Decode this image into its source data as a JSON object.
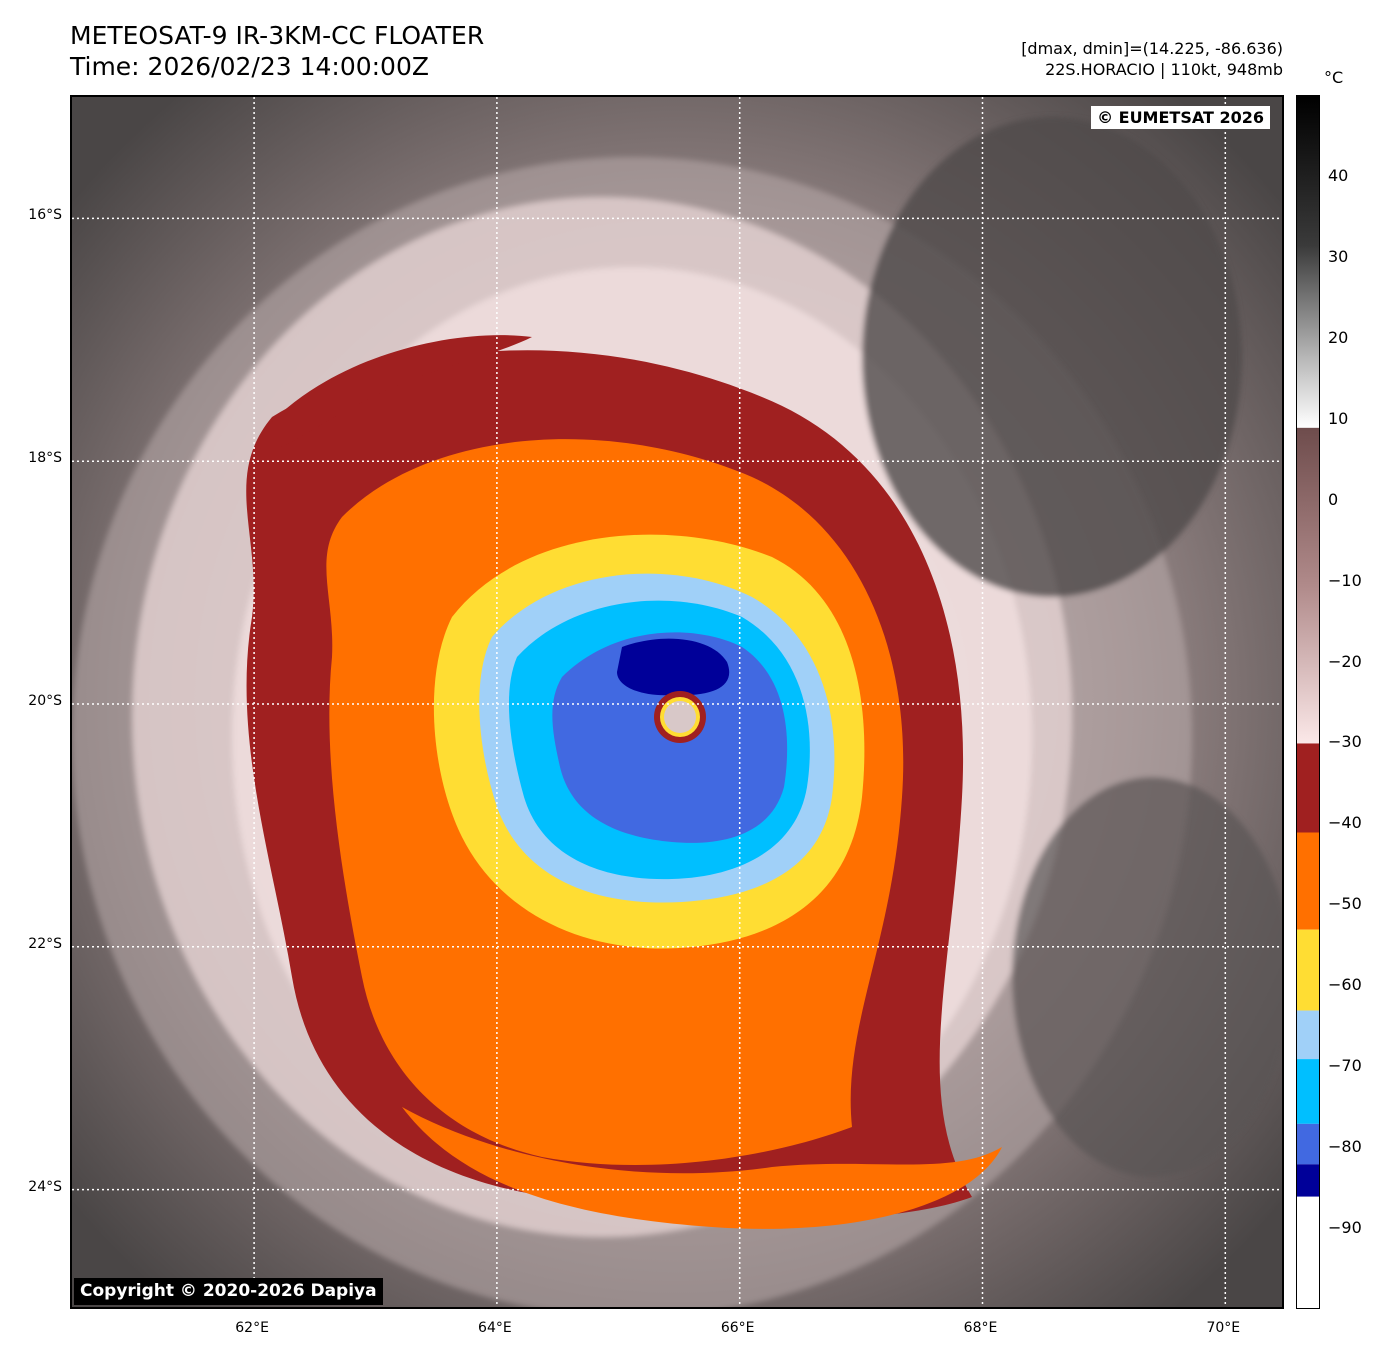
{
  "header": {
    "title_line1": "METEOSAT-9 IR-3KM-CC FLOATER",
    "title_line2": "Time: 2026/02/23 14:00:00Z",
    "range_info": "[dmax, dmin]=(14.225, -86.636)",
    "storm_info": "22S.HORACIO | 110kt, 948mb"
  },
  "map": {
    "credit_top": "© EUMETSAT 2026",
    "credit_bottom": "Copyright © 2020-2026 Dapiya",
    "lat_labels": [
      "16°S",
      "18°S",
      "20°S",
      "22°S",
      "24°S"
    ],
    "lon_labels": [
      "62°E",
      "64°E",
      "66°E",
      "68°E",
      "70°E"
    ],
    "lat_values": [
      -16,
      -18,
      -20,
      -22,
      -24
    ],
    "lon_values": [
      62,
      64,
      66,
      68,
      70
    ],
    "lon_range": [
      60.5,
      70.5
    ],
    "lat_range": [
      -15,
      -25
    ],
    "storm_center": {
      "lon": 65.6,
      "lat": -20.05
    }
  },
  "colorbar": {
    "unit": "°C",
    "tick_labels": [
      "40",
      "30",
      "20",
      "10",
      "0",
      "−10",
      "−20",
      "−30",
      "−40",
      "−50",
      "−60",
      "−70",
      "−80",
      "−90"
    ],
    "tick_values": [
      40,
      30,
      20,
      10,
      0,
      -10,
      -20,
      -30,
      -40,
      -50,
      -60,
      -70,
      -80,
      -90
    ],
    "range": [
      50,
      -100
    ],
    "segments": [
      {
        "from": 50,
        "to": 9,
        "type": "gray"
      },
      {
        "from": 9,
        "to": -30,
        "type": "brownpink"
      },
      {
        "from": -30,
        "to": -41,
        "color": "#a02020"
      },
      {
        "from": -41,
        "to": -53,
        "color": "#ff7000"
      },
      {
        "from": -53,
        "to": -63,
        "color": "#ffdd33"
      },
      {
        "from": -63,
        "to": -69,
        "color": "#a0d0f8"
      },
      {
        "from": -69,
        "to": -77,
        "color": "#00bfff"
      },
      {
        "from": -77,
        "to": -82,
        "color": "#4169e1"
      },
      {
        "from": -82,
        "to": -86,
        "color": "#000099"
      },
      {
        "from": -86,
        "to": -100,
        "color": "#ffffff"
      }
    ]
  }
}
